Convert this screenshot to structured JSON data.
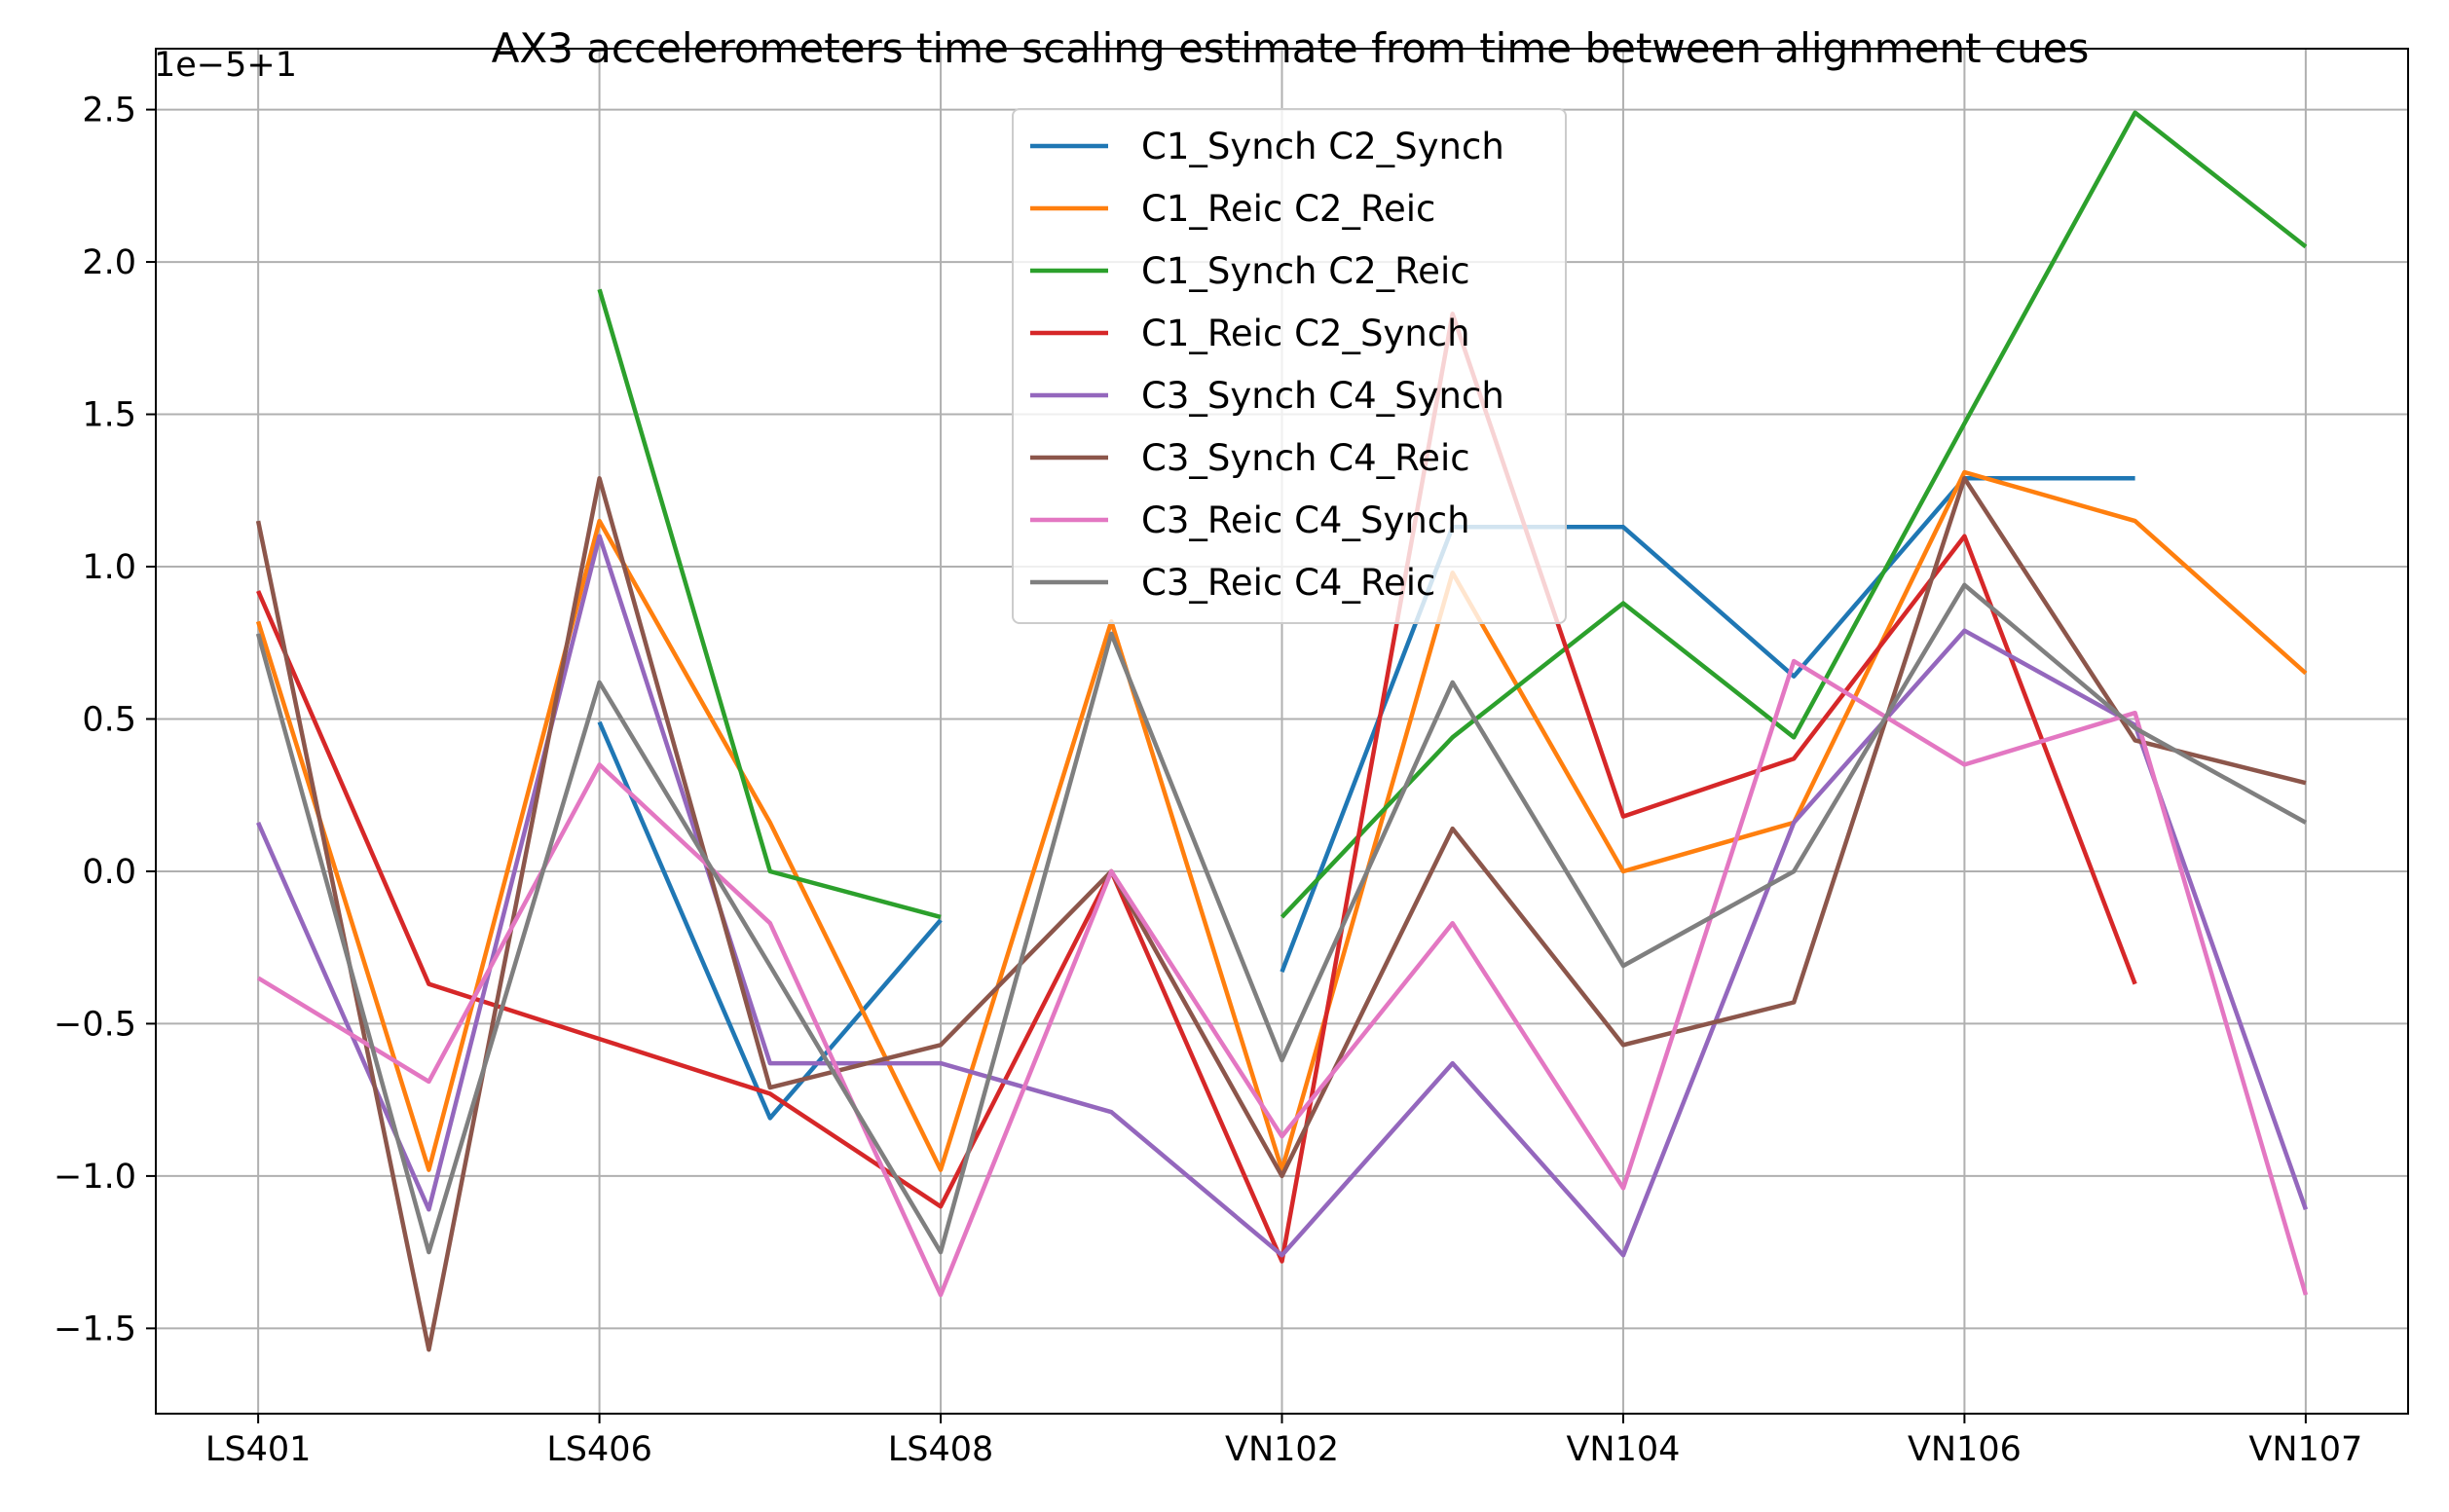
{
  "chart_data": {
    "type": "line",
    "title": "AX3 accelerometers time scaling estimate from time between alignment cues",
    "axis_offset_text": "1e−5+1",
    "xlabel": "",
    "ylabel": "",
    "x_tick_labels": [
      "LS401",
      "LS406",
      "LS408",
      "VN102",
      "VN104",
      "VN106",
      "VN107"
    ],
    "x_tick_positions": [
      0,
      2,
      4,
      6,
      8,
      10,
      12
    ],
    "x_points": [
      0,
      1,
      2,
      3,
      4,
      5,
      6,
      7,
      8,
      9,
      10,
      11,
      12
    ],
    "xlim": [
      -0.6,
      12.6
    ],
    "ylim": [
      -1.78,
      2.7
    ],
    "y_ticks": [
      -1.5,
      -1.0,
      -0.5,
      0.0,
      0.5,
      1.0,
      1.5,
      2.0,
      2.5
    ],
    "y_tick_labels": [
      "−1.5",
      "−1.0",
      "−0.5",
      "0.0",
      "0.5",
      "1.0",
      "1.5",
      "2.0",
      "2.5"
    ],
    "grid": true,
    "legend_position": "top-center",
    "series": [
      {
        "name": "C1_Synch C2_Synch",
        "color": "#1f77b4",
        "values": [
          null,
          null,
          0.49,
          -0.81,
          -0.16,
          null,
          -0.33,
          1.13,
          1.13,
          0.64,
          1.29,
          1.29,
          null
        ]
      },
      {
        "name": "C1_Reic C2_Reic",
        "color": "#ff7f0e",
        "values": [
          0.82,
          -0.98,
          1.15,
          0.16,
          -0.98,
          0.82,
          -0.98,
          0.98,
          0.0,
          0.16,
          1.31,
          1.15,
          0.65
        ]
      },
      {
        "name": "C1_Synch C2_Reic",
        "color": "#2ca02c",
        "values": [
          null,
          null,
          1.91,
          0.0,
          -0.15,
          null,
          -0.15,
          0.44,
          0.88,
          0.44,
          1.47,
          2.49,
          2.05
        ]
      },
      {
        "name": "C1_Reic C2_Synch",
        "color": "#d62728",
        "values": [
          0.92,
          -0.37,
          -0.55,
          -0.73,
          -1.1,
          0.0,
          -1.28,
          1.83,
          0.18,
          0.37,
          1.1,
          -0.37,
          null
        ]
      },
      {
        "name": "C3_Synch C4_Synch",
        "color": "#9467bd",
        "values": [
          0.16,
          -1.11,
          1.1,
          -0.63,
          -0.63,
          -0.79,
          -1.26,
          -0.63,
          -1.26,
          0.16,
          0.79,
          0.48,
          -1.11
        ]
      },
      {
        "name": "C3_Synch C4_Reic",
        "color": "#8c564b",
        "values": [
          1.15,
          -1.57,
          1.29,
          -0.71,
          -0.57,
          0.0,
          -1.0,
          0.14,
          -0.57,
          -0.43,
          1.29,
          0.43,
          0.29
        ]
      },
      {
        "name": "C3_Reic C4_Synch",
        "color": "#e377c2",
        "values": [
          -0.35,
          -0.69,
          0.35,
          -0.17,
          -1.39,
          0.0,
          -0.87,
          -0.17,
          -1.04,
          0.69,
          0.35,
          0.52,
          -1.39
        ]
      },
      {
        "name": "C3_Reic C4_Reic",
        "color": "#7f7f7f",
        "values": [
          0.78,
          -1.25,
          0.62,
          -0.31,
          -1.25,
          0.78,
          -0.62,
          0.62,
          -0.31,
          0.0,
          0.94,
          0.47,
          0.16
        ]
      }
    ]
  }
}
